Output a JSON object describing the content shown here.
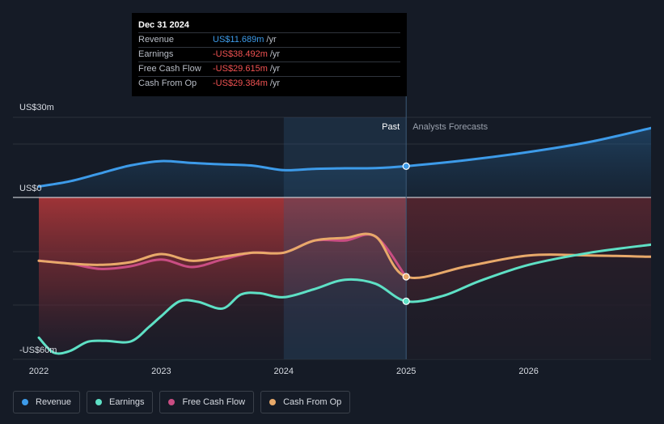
{
  "tooltip": {
    "date": "Dec 31 2024",
    "rows": [
      {
        "label": "Revenue",
        "value": "US$11.689m",
        "unit": "/yr",
        "color": "#3d9be9"
      },
      {
        "label": "Earnings",
        "value": "-US$38.492m",
        "unit": "/yr",
        "color": "#f05252"
      },
      {
        "label": "Free Cash Flow",
        "value": "-US$29.615m",
        "unit": "/yr",
        "color": "#f05252"
      },
      {
        "label": "Cash From Op",
        "value": "-US$29.384m",
        "unit": "/yr",
        "color": "#f05252"
      }
    ]
  },
  "chart_data": {
    "type": "line",
    "ylabels": {
      "top": "US$30m",
      "zero": "US$0",
      "bottom": "-US$60m"
    },
    "ylim": [
      -60,
      30
    ],
    "xlim": [
      2022.0,
      2027.0
    ],
    "x_ticks": [
      "2022",
      "2023",
      "2024",
      "2025",
      "2026"
    ],
    "past_label": "Past",
    "forecast_label": "Analysts Forecasts",
    "divider_x": 2025.0,
    "highlight_start_x": 2024.0,
    "colors": {
      "revenue": "#3d9be9",
      "earnings": "#5ee0c5",
      "free_cash_flow": "#c94d83",
      "cash_from_op": "#e8a96a",
      "negative_fill": "#8f2f36"
    },
    "series": [
      {
        "key": "revenue",
        "name": "Revenue",
        "x": [
          2022.0,
          2022.25,
          2022.5,
          2022.75,
          2023.0,
          2023.25,
          2023.5,
          2023.75,
          2024.0,
          2024.25,
          2024.5,
          2024.75,
          2025.0,
          2025.5,
          2026.0,
          2026.5,
          2027.0
        ],
        "y": [
          4.1,
          6.0,
          9.0,
          12.0,
          13.6,
          12.9,
          12.4,
          11.9,
          10.2,
          10.7,
          10.9,
          11.0,
          11.7,
          14.0,
          17.0,
          20.8,
          26.0
        ]
      },
      {
        "key": "earnings",
        "name": "Earnings",
        "x": [
          2022.0,
          2022.12,
          2022.25,
          2022.4,
          2022.55,
          2022.75,
          2022.9,
          2023.0,
          2023.15,
          2023.3,
          2023.5,
          2023.65,
          2023.8,
          2024.0,
          2024.25,
          2024.5,
          2024.75,
          2025.0,
          2025.3,
          2025.6,
          2026.0,
          2026.5,
          2027.0
        ],
        "y": [
          -52.0,
          -57.5,
          -57.0,
          -53.5,
          -53.2,
          -53.4,
          -48.0,
          -44.0,
          -38.5,
          -38.7,
          -41.2,
          -36.0,
          -35.5,
          -37.0,
          -34.0,
          -30.5,
          -32.0,
          -38.5,
          -36.5,
          -31.0,
          -25.0,
          -20.5,
          -17.5
        ]
      },
      {
        "key": "free_cash_flow",
        "name": "Free Cash Flow",
        "x": [
          2022.0,
          2022.25,
          2022.5,
          2022.75,
          2023.0,
          2023.25,
          2023.5,
          2023.75,
          2024.0,
          2024.25,
          2024.5,
          2024.75,
          2025.0
        ],
        "y": [
          -23.5,
          -24.5,
          -26.5,
          -25.5,
          -23.0,
          -25.8,
          -23.0,
          -20.5,
          -20.5,
          -16.0,
          -16.0,
          -14.5,
          -29.6
        ]
      },
      {
        "key": "cash_from_op",
        "name": "Cash From Op",
        "x": [
          2022.0,
          2022.25,
          2022.5,
          2022.75,
          2023.0,
          2023.25,
          2023.5,
          2023.75,
          2024.0,
          2024.25,
          2024.5,
          2024.75,
          2025.0,
          2025.5,
          2026.0,
          2026.5,
          2027.0
        ],
        "y": [
          -23.5,
          -24.5,
          -25.0,
          -24.0,
          -21.0,
          -23.5,
          -22.0,
          -20.5,
          -20.5,
          -16.0,
          -15.0,
          -14.5,
          -29.4,
          -25.5,
          -21.5,
          -21.5,
          -22.0
        ]
      }
    ],
    "markers": [
      {
        "key": "revenue",
        "x": 2025.0,
        "y": 11.7
      },
      {
        "key": "earnings",
        "x": 2025.0,
        "y": -38.5
      },
      {
        "key": "cash_from_op",
        "x": 2025.0,
        "y": -29.4
      }
    ]
  },
  "legend": [
    {
      "key": "revenue",
      "label": "Revenue",
      "color": "#3d9be9"
    },
    {
      "key": "earnings",
      "label": "Earnings",
      "color": "#5ee0c5"
    },
    {
      "key": "free_cash_flow",
      "label": "Free Cash Flow",
      "color": "#c94d83"
    },
    {
      "key": "cash_from_op",
      "label": "Cash From Op",
      "color": "#e8a96a"
    }
  ]
}
